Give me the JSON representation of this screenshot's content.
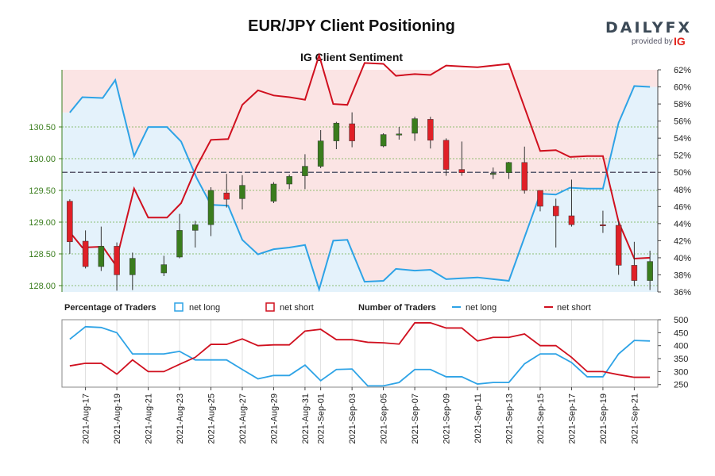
{
  "title": "EUR/JPY Client Positioning",
  "subtitle": "IG Client Sentiment",
  "brand": {
    "name": "DAILYFX",
    "provided_by": "provided by",
    "partner": "IG"
  },
  "colors": {
    "bull": "#3a7d1d",
    "bear": "#e02027",
    "net_long": "#2ea3e6",
    "net_short": "#d0101f",
    "long_zone": "#e4f2fb",
    "short_zone": "#fbe4e4",
    "price_axis": "#3a7d1d"
  },
  "chart_data": [
    {
      "type": "candlestick",
      "name": "price",
      "y_axis": {
        "ticks": [
          "128.00",
          "128.50",
          "129.00",
          "129.50",
          "130.00",
          "130.50"
        ],
        "range": [
          127.9,
          131.4
        ]
      },
      "y2_axis": {
        "ticks": [
          "36%",
          "38%",
          "40%",
          "42%",
          "44%",
          "46%",
          "48%",
          "50%",
          "52%",
          "54%",
          "56%",
          "58%",
          "60%",
          "62%"
        ],
        "range": [
          36,
          62
        ]
      },
      "candles": [
        {
          "o": 129.33,
          "h": 129.36,
          "l": 128.5,
          "c": 128.69
        },
        {
          "o": 128.7,
          "h": 128.87,
          "l": 128.27,
          "c": 128.3
        },
        {
          "o": 128.3,
          "h": 128.93,
          "l": 128.23,
          "c": 128.62
        },
        {
          "o": 128.62,
          "h": 128.68,
          "l": 127.92,
          "c": 128.17
        },
        {
          "o": 128.17,
          "h": 128.52,
          "l": 127.93,
          "c": 128.43
        },
        {
          "o": 128.2,
          "h": 128.47,
          "l": 128.15,
          "c": 128.33
        },
        {
          "o": 128.45,
          "h": 129.13,
          "l": 128.43,
          "c": 128.87
        },
        {
          "o": 128.87,
          "h": 129.02,
          "l": 128.6,
          "c": 128.96
        },
        {
          "o": 128.96,
          "h": 129.55,
          "l": 128.78,
          "c": 129.5
        },
        {
          "o": 129.46,
          "h": 129.76,
          "l": 129.23,
          "c": 129.36
        },
        {
          "o": 129.37,
          "h": 129.74,
          "l": 129.2,
          "c": 129.58
        },
        {
          "o": 129.33,
          "h": 129.63,
          "l": 129.3,
          "c": 129.6
        },
        {
          "o": 129.6,
          "h": 129.75,
          "l": 129.52,
          "c": 129.72
        },
        {
          "o": 129.73,
          "h": 130.07,
          "l": 129.52,
          "c": 129.88
        },
        {
          "o": 129.88,
          "h": 130.45,
          "l": 129.85,
          "c": 130.28
        },
        {
          "o": 130.28,
          "h": 130.58,
          "l": 130.15,
          "c": 130.56
        },
        {
          "o": 130.55,
          "h": 130.73,
          "l": 130.18,
          "c": 130.28
        },
        {
          "o": 130.2,
          "h": 130.4,
          "l": 130.18,
          "c": 130.38
        },
        {
          "o": 130.38,
          "h": 130.5,
          "l": 130.3,
          "c": 130.39
        },
        {
          "o": 130.4,
          "h": 130.66,
          "l": 130.28,
          "c": 130.63
        },
        {
          "o": 130.62,
          "h": 130.66,
          "l": 130.16,
          "c": 130.29
        },
        {
          "o": 130.29,
          "h": 130.32,
          "l": 129.73,
          "c": 129.83
        },
        {
          "o": 129.83,
          "h": 130.27,
          "l": 129.73,
          "c": 129.78
        },
        {
          "o": 129.77,
          "h": 129.86,
          "l": 129.68,
          "c": 129.77
        },
        {
          "o": 129.78,
          "h": 129.95,
          "l": 129.68,
          "c": 129.94
        },
        {
          "o": 129.94,
          "h": 130.19,
          "l": 129.45,
          "c": 129.5
        },
        {
          "o": 129.5,
          "h": 129.5,
          "l": 129.17,
          "c": 129.25
        },
        {
          "o": 129.25,
          "h": 129.37,
          "l": 128.6,
          "c": 129.1
        },
        {
          "o": 129.1,
          "h": 129.67,
          "l": 128.93,
          "c": 128.96
        },
        {
          "o": 128.96,
          "h": 129.18,
          "l": 128.83,
          "c": 128.95
        },
        {
          "o": 128.95,
          "h": 129.02,
          "l": 128.17,
          "c": 128.32
        },
        {
          "o": 128.32,
          "h": 128.69,
          "l": 127.99,
          "c": 128.08
        },
        {
          "o": 128.08,
          "h": 128.55,
          "l": 127.93,
          "c": 128.38
        }
      ],
      "candle_slots": [
        0,
        1,
        2,
        3,
        4,
        6,
        7,
        8,
        9,
        10,
        11,
        13,
        14,
        15,
        16,
        17,
        18,
        20,
        21,
        22,
        23,
        24,
        25,
        27,
        28,
        29,
        30,
        31,
        32,
        34,
        35,
        36,
        37
      ],
      "net_long_pct": [
        [
          0,
          57.0
        ],
        [
          0.8,
          58.8
        ],
        [
          2.1,
          58.7
        ],
        [
          2.9,
          60.8
        ],
        [
          4.1,
          51.9
        ],
        [
          5.0,
          55.3
        ],
        [
          6.2,
          55.3
        ],
        [
          7.1,
          53.6
        ],
        [
          8.1,
          49.3
        ],
        [
          9.0,
          46.2
        ],
        [
          10.1,
          46.1
        ],
        [
          11.0,
          42.1
        ],
        [
          12.0,
          40.4
        ],
        [
          13.0,
          41.0
        ],
        [
          14.0,
          41.2
        ],
        [
          15.0,
          41.5
        ],
        [
          15.9,
          36.3
        ],
        [
          16.8,
          42.0
        ],
        [
          17.7,
          42.1
        ],
        [
          18.8,
          37.2
        ],
        [
          20.0,
          37.3
        ],
        [
          20.8,
          38.7
        ],
        [
          22.0,
          38.5
        ],
        [
          23.0,
          38.6
        ],
        [
          24.0,
          37.5
        ],
        [
          25.0,
          37.6
        ],
        [
          26.0,
          37.7
        ],
        [
          27.0,
          37.5
        ],
        [
          28.0,
          37.3
        ],
        [
          30.0,
          47.5
        ],
        [
          31.0,
          47.4
        ],
        [
          31.9,
          48.2
        ],
        [
          33.0,
          48.1
        ],
        [
          34.0,
          48.1
        ],
        [
          35.0,
          55.8
        ],
        [
          36.0,
          60.1
        ],
        [
          37.0,
          60.0
        ]
      ],
      "net_short_pct": [
        [
          0,
          43.0
        ],
        [
          0.8,
          41.2
        ],
        [
          2.1,
          41.3
        ],
        [
          2.9,
          39.2
        ],
        [
          4.1,
          48.1
        ],
        [
          5.0,
          44.7
        ],
        [
          6.2,
          44.7
        ],
        [
          7.1,
          46.4
        ],
        [
          8.1,
          50.7
        ],
        [
          9.0,
          53.8
        ],
        [
          10.1,
          53.9
        ],
        [
          11.0,
          57.9
        ],
        [
          12.0,
          59.6
        ],
        [
          13.0,
          59.0
        ],
        [
          14.0,
          58.8
        ],
        [
          15.0,
          58.5
        ],
        [
          15.9,
          63.7
        ],
        [
          16.8,
          58.0
        ],
        [
          17.7,
          57.9
        ],
        [
          18.8,
          62.8
        ],
        [
          20.0,
          62.7
        ],
        [
          20.8,
          61.3
        ],
        [
          22.0,
          61.5
        ],
        [
          23.0,
          61.4
        ],
        [
          24.0,
          62.5
        ],
        [
          25.0,
          62.4
        ],
        [
          26.0,
          62.3
        ],
        [
          27.0,
          62.5
        ],
        [
          28.0,
          62.7
        ],
        [
          30.0,
          52.5
        ],
        [
          31.0,
          52.6
        ],
        [
          31.9,
          51.8
        ],
        [
          33.0,
          51.9
        ],
        [
          34.0,
          51.9
        ],
        [
          35.0,
          44.2
        ],
        [
          36.0,
          39.9
        ],
        [
          37.0,
          40.0
        ]
      ]
    },
    {
      "type": "line",
      "name": "Number of Traders",
      "y_axis": {
        "ticks": [
          "250",
          "300",
          "350",
          "400",
          "450",
          "500"
        ],
        "range": [
          240,
          500
        ]
      },
      "series": [
        {
          "name": "net long",
          "values": [
            [
              0,
              425
            ],
            [
              1,
              473
            ],
            [
              2,
              470
            ],
            [
              3,
              450
            ],
            [
              4,
              368
            ],
            [
              5,
              368
            ],
            [
              6,
              368
            ],
            [
              7,
              378
            ],
            [
              8,
              345
            ],
            [
              9,
              345
            ],
            [
              10,
              345
            ],
            [
              11,
              308
            ],
            [
              12,
              272
            ],
            [
              13,
              285
            ],
            [
              14,
              285
            ],
            [
              15,
              325
            ],
            [
              16,
              265
            ],
            [
              17,
              308
            ],
            [
              18,
              310
            ],
            [
              19,
              245
            ],
            [
              20,
              245
            ],
            [
              21,
              258
            ],
            [
              22,
              308
            ],
            [
              23,
              308
            ],
            [
              24,
              280
            ],
            [
              25,
              280
            ],
            [
              26,
              252
            ],
            [
              27,
              258
            ],
            [
              28,
              258
            ],
            [
              29,
              330
            ],
            [
              30,
              368
            ],
            [
              31,
              368
            ],
            [
              32,
              335
            ],
            [
              33,
              280
            ],
            [
              34,
              280
            ],
            [
              35,
              368
            ],
            [
              36,
              420
            ],
            [
              37,
              418
            ]
          ]
        },
        {
          "name": "net short",
          "values": [
            [
              0,
              322
            ],
            [
              1,
              332
            ],
            [
              2,
              332
            ],
            [
              3,
              290
            ],
            [
              4,
              345
            ],
            [
              5,
              300
            ],
            [
              6,
              300
            ],
            [
              7,
              328
            ],
            [
              8,
              355
            ],
            [
              9,
              405
            ],
            [
              10,
              405
            ],
            [
              11,
              426
            ],
            [
              12,
              400
            ],
            [
              13,
              403
            ],
            [
              14,
              403
            ],
            [
              15,
              456
            ],
            [
              16,
              463
            ],
            [
              17,
              423
            ],
            [
              18,
              423
            ],
            [
              19,
              413
            ],
            [
              20,
              411
            ],
            [
              21,
              406
            ],
            [
              22,
              488
            ],
            [
              23,
              488
            ],
            [
              24,
              468
            ],
            [
              25,
              468
            ],
            [
              26,
              418
            ],
            [
              27,
              432
            ],
            [
              28,
              432
            ],
            [
              29,
              445
            ],
            [
              30,
              400
            ],
            [
              31,
              400
            ],
            [
              32,
              355
            ],
            [
              33,
              300
            ],
            [
              34,
              300
            ],
            [
              35,
              288
            ],
            [
              36,
              278
            ],
            [
              37,
              278
            ]
          ]
        }
      ],
      "x_tick_labels": [
        "2021-Aug-17",
        "2021-Aug-19",
        "2021-Aug-21",
        "2021-Aug-23",
        "2021-Aug-25",
        "2021-Aug-27",
        "2021-Aug-29",
        "2021-Aug-31",
        "2021-Sep-01",
        "2021-Sep-03",
        "2021-Sep-05",
        "2021-Sep-07",
        "2021-Sep-09",
        "2021-Sep-11",
        "2021-Sep-13",
        "2021-Sep-15",
        "2021-Sep-17",
        "2021-Sep-19",
        "2021-Sep-21"
      ],
      "x_tick_slots": [
        1,
        3,
        5,
        7,
        9,
        11,
        13,
        15,
        16,
        18,
        20,
        22,
        24,
        26,
        28,
        30,
        32,
        34,
        36
      ]
    }
  ],
  "legend": {
    "percentage_title": "Percentage of Traders",
    "percentage_long": "net long",
    "percentage_short": "net short",
    "number_title": "Number of Traders",
    "number_long": "net long",
    "number_short": "net short"
  }
}
